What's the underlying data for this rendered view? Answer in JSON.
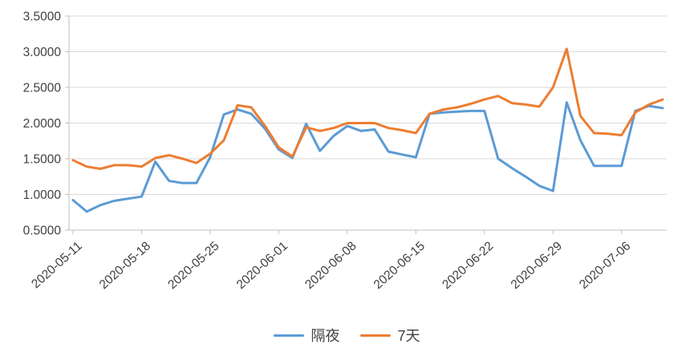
{
  "chart_data": {
    "type": "line",
    "title": "",
    "x_dates": [
      "2020-05-11",
      "2020-05-12",
      "2020-05-13",
      "2020-05-14",
      "2020-05-15",
      "2020-05-18",
      "2020-05-19",
      "2020-05-20",
      "2020-05-21",
      "2020-05-22",
      "2020-05-25",
      "2020-05-26",
      "2020-05-27",
      "2020-05-28",
      "2020-05-29",
      "2020-06-01",
      "2020-06-02",
      "2020-06-03",
      "2020-06-04",
      "2020-06-05",
      "2020-06-08",
      "2020-06-09",
      "2020-06-10",
      "2020-06-11",
      "2020-06-12",
      "2020-06-15",
      "2020-06-16",
      "2020-06-17",
      "2020-06-18",
      "2020-06-19",
      "2020-06-22",
      "2020-06-23",
      "2020-06-24",
      "2020-06-25",
      "2020-06-26",
      "2020-06-29",
      "2020-06-30",
      "2020-07-01",
      "2020-07-02",
      "2020-07-03",
      "2020-07-06",
      "2020-07-07",
      "2020-07-08",
      "2020-07-09"
    ],
    "x_tick_labels": [
      "2020-05-11",
      "2020-05-18",
      "2020-05-25",
      "2020-06-01",
      "2020-06-08",
      "2020-06-15",
      "2020-06-22",
      "2020-06-29",
      "2020-07-06"
    ],
    "x_tick_every": 5,
    "series": [
      {
        "name": "隔夜",
        "color": "#5B9BD5",
        "values": [
          0.92,
          0.76,
          0.85,
          0.91,
          0.94,
          0.97,
          1.46,
          1.19,
          1.16,
          1.16,
          1.52,
          2.12,
          2.19,
          2.13,
          1.92,
          1.63,
          1.51,
          1.99,
          1.61,
          1.82,
          1.96,
          1.89,
          1.91,
          1.6,
          1.56,
          1.52,
          2.13,
          2.15,
          2.16,
          2.17,
          2.17,
          1.5,
          1.37,
          1.25,
          1.12,
          1.05,
          2.29,
          1.76,
          1.4,
          1.4,
          1.4,
          2.17,
          2.24,
          2.21
        ]
      },
      {
        "name": "7天",
        "color": "#ED7D31",
        "values": [
          1.48,
          1.39,
          1.36,
          1.41,
          1.41,
          1.39,
          1.51,
          1.55,
          1.5,
          1.44,
          1.57,
          1.76,
          2.25,
          2.22,
          1.96,
          1.66,
          1.53,
          1.94,
          1.89,
          1.93,
          2.0,
          2.0,
          2.0,
          1.93,
          1.9,
          1.86,
          2.13,
          2.19,
          2.22,
          2.27,
          2.33,
          2.38,
          2.28,
          2.26,
          2.23,
          2.5,
          3.04,
          2.1,
          1.86,
          1.85,
          1.83,
          2.15,
          2.26,
          2.33
        ]
      }
    ],
    "ylim": [
      0.5,
      3.5
    ],
    "y_tick_step": 0.5,
    "y_tick_labels": [
      "0.5000",
      "1.0000",
      "1.5000",
      "2.0000",
      "2.5000",
      "3.0000",
      "3.5000"
    ],
    "grid": true,
    "legend_position": "bottom"
  },
  "colors": {
    "gridline": "#D9D9D9",
    "axis": "#BFBFBF",
    "label_text": "#404040",
    "background": "#FFFFFF"
  }
}
